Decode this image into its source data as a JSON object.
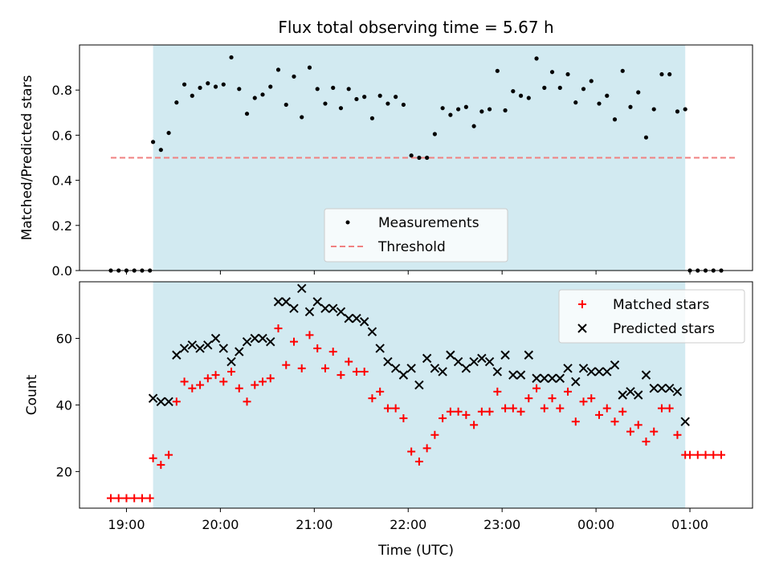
{
  "chart_data": [
    {
      "type": "scatter",
      "title": "Flux total observing time = 5.67 h",
      "ylabel": "Matched/Predicted stars",
      "xlabel": "",
      "ylim": [
        0,
        1.0
      ],
      "yticks": [
        0.0,
        0.2,
        0.4,
        0.6,
        0.8
      ],
      "ytick_labels": [
        "0.0",
        "0.2",
        "0.4",
        "0.6",
        "0.8"
      ],
      "xlim": [
        "18:30",
        "01:40"
      ],
      "xticks": [
        "19:00",
        "20:00",
        "21:00",
        "22:00",
        "23:00",
        "00:00",
        "01:00"
      ],
      "observing_window": [
        "19:17",
        "00:57"
      ],
      "threshold": {
        "value": 0.5,
        "x_range": [
          "18:50",
          "01:30"
        ],
        "color": "#f08080"
      },
      "legend": {
        "placement": "lower-center",
        "entries": [
          "Measurements",
          "Threshold"
        ]
      },
      "series": [
        {
          "name": "Measurements",
          "color": "#000000",
          "points": [
            [
              "18:50",
              0.0
            ],
            [
              "18:55",
              0.0
            ],
            [
              "19:00",
              0.0
            ],
            [
              "19:05",
              0.0
            ],
            [
              "19:10",
              0.0
            ],
            [
              "19:15",
              0.0
            ],
            [
              "19:17",
              0.57
            ],
            [
              "19:22",
              0.535
            ],
            [
              "19:27",
              0.61
            ],
            [
              "19:32",
              0.745
            ],
            [
              "19:37",
              0.825
            ],
            [
              "19:42",
              0.775
            ],
            [
              "19:47",
              0.81
            ],
            [
              "19:52",
              0.83
            ],
            [
              "19:57",
              0.815
            ],
            [
              "20:02",
              0.825
            ],
            [
              "20:07",
              0.945
            ],
            [
              "20:12",
              0.805
            ],
            [
              "20:17",
              0.695
            ],
            [
              "20:22",
              0.765
            ],
            [
              "20:27",
              0.78
            ],
            [
              "20:32",
              0.815
            ],
            [
              "20:37",
              0.89
            ],
            [
              "20:42",
              0.735
            ],
            [
              "20:47",
              0.86
            ],
            [
              "20:52",
              0.68
            ],
            [
              "20:57",
              0.9
            ],
            [
              "21:02",
              0.805
            ],
            [
              "21:07",
              0.74
            ],
            [
              "21:12",
              0.81
            ],
            [
              "21:17",
              0.72
            ],
            [
              "21:22",
              0.805
            ],
            [
              "21:27",
              0.76
            ],
            [
              "21:32",
              0.77
            ],
            [
              "21:37",
              0.675
            ],
            [
              "21:42",
              0.775
            ],
            [
              "21:47",
              0.74
            ],
            [
              "21:52",
              0.77
            ],
            [
              "21:57",
              0.735
            ],
            [
              "22:02",
              0.51
            ],
            [
              "22:07",
              0.5
            ],
            [
              "22:12",
              0.5
            ],
            [
              "22:17",
              0.605
            ],
            [
              "22:22",
              0.72
            ],
            [
              "22:27",
              0.69
            ],
            [
              "22:32",
              0.715
            ],
            [
              "22:37",
              0.725
            ],
            [
              "22:42",
              0.64
            ],
            [
              "22:47",
              0.705
            ],
            [
              "22:52",
              0.715
            ],
            [
              "22:57",
              0.885
            ],
            [
              "23:02",
              0.71
            ],
            [
              "23:07",
              0.795
            ],
            [
              "23:12",
              0.775
            ],
            [
              "23:17",
              0.765
            ],
            [
              "23:22",
              0.94
            ],
            [
              "23:27",
              0.81
            ],
            [
              "23:32",
              0.88
            ],
            [
              "23:37",
              0.81
            ],
            [
              "23:42",
              0.87
            ],
            [
              "23:47",
              0.745
            ],
            [
              "23:52",
              0.805
            ],
            [
              "23:57",
              0.84
            ],
            [
              "00:02",
              0.74
            ],
            [
              "00:07",
              0.775
            ],
            [
              "00:12",
              0.67
            ],
            [
              "00:17",
              0.885
            ],
            [
              "00:22",
              0.725
            ],
            [
              "00:27",
              0.79
            ],
            [
              "00:32",
              0.59
            ],
            [
              "00:37",
              0.715
            ],
            [
              "00:42",
              0.87
            ],
            [
              "00:47",
              0.87
            ],
            [
              "00:52",
              0.705
            ],
            [
              "00:57",
              0.715
            ],
            [
              "01:00",
              0.0
            ],
            [
              "01:05",
              0.0
            ],
            [
              "01:10",
              0.0
            ],
            [
              "01:15",
              0.0
            ],
            [
              "01:20",
              0.0
            ]
          ]
        }
      ]
    },
    {
      "type": "scatter",
      "title": "",
      "ylabel": "Count",
      "xlabel": "Time (UTC)",
      "ylim": [
        9,
        77
      ],
      "yticks": [
        20,
        40,
        60
      ],
      "ytick_labels": [
        "20",
        "40",
        "60"
      ],
      "xlim": [
        "18:30",
        "01:40"
      ],
      "xticks": [
        "19:00",
        "20:00",
        "21:00",
        "22:00",
        "23:00",
        "00:00",
        "01:00"
      ],
      "xtick_labels": [
        "19:00",
        "20:00",
        "21:00",
        "22:00",
        "23:00",
        "00:00",
        "01:00"
      ],
      "observing_window": [
        "19:17",
        "00:57"
      ],
      "legend": {
        "placement": "top-right",
        "entries": [
          "Matched stars",
          "Predicted stars"
        ]
      },
      "series": [
        {
          "name": "Matched stars",
          "color": "#ff0000",
          "marker": "plus",
          "points": [
            [
              "18:50",
              12
            ],
            [
              "18:55",
              12
            ],
            [
              "19:00",
              12
            ],
            [
              "19:05",
              12
            ],
            [
              "19:10",
              12
            ],
            [
              "19:15",
              12
            ],
            [
              "19:17",
              24
            ],
            [
              "19:22",
              22
            ],
            [
              "19:27",
              25
            ],
            [
              "19:32",
              41
            ],
            [
              "19:37",
              47
            ],
            [
              "19:42",
              45
            ],
            [
              "19:47",
              46
            ],
            [
              "19:52",
              48
            ],
            [
              "19:57",
              49
            ],
            [
              "20:02",
              47
            ],
            [
              "20:07",
              50
            ],
            [
              "20:12",
              45
            ],
            [
              "20:17",
              41
            ],
            [
              "20:22",
              46
            ],
            [
              "20:27",
              47
            ],
            [
              "20:32",
              48
            ],
            [
              "20:37",
              63
            ],
            [
              "20:42",
              52
            ],
            [
              "20:47",
              59
            ],
            [
              "20:52",
              51
            ],
            [
              "20:57",
              61
            ],
            [
              "21:02",
              57
            ],
            [
              "21:07",
              51
            ],
            [
              "21:12",
              56
            ],
            [
              "21:17",
              49
            ],
            [
              "21:22",
              53
            ],
            [
              "21:27",
              50
            ],
            [
              "21:32",
              50
            ],
            [
              "21:37",
              42
            ],
            [
              "21:42",
              44
            ],
            [
              "21:47",
              39
            ],
            [
              "21:52",
              39
            ],
            [
              "21:57",
              36
            ],
            [
              "22:02",
              26
            ],
            [
              "22:07",
              23
            ],
            [
              "22:12",
              27
            ],
            [
              "22:17",
              31
            ],
            [
              "22:22",
              36
            ],
            [
              "22:27",
              38
            ],
            [
              "22:32",
              38
            ],
            [
              "22:37",
              37
            ],
            [
              "22:42",
              34
            ],
            [
              "22:47",
              38
            ],
            [
              "22:52",
              38
            ],
            [
              "22:57",
              44
            ],
            [
              "23:02",
              39
            ],
            [
              "23:07",
              39
            ],
            [
              "23:12",
              38
            ],
            [
              "23:17",
              42
            ],
            [
              "23:22",
              45
            ],
            [
              "23:27",
              39
            ],
            [
              "23:32",
              42
            ],
            [
              "23:37",
              39
            ],
            [
              "23:42",
              44
            ],
            [
              "23:47",
              35
            ],
            [
              "23:52",
              41
            ],
            [
              "23:57",
              42
            ],
            [
              "00:02",
              37
            ],
            [
              "00:07",
              39
            ],
            [
              "00:12",
              35
            ],
            [
              "00:17",
              38
            ],
            [
              "00:22",
              32
            ],
            [
              "00:27",
              34
            ],
            [
              "00:32",
              29
            ],
            [
              "00:37",
              32
            ],
            [
              "00:42",
              39
            ],
            [
              "00:47",
              39
            ],
            [
              "00:52",
              31
            ],
            [
              "00:57",
              25
            ],
            [
              "01:00",
              25
            ],
            [
              "01:05",
              25
            ],
            [
              "01:10",
              25
            ],
            [
              "01:15",
              25
            ],
            [
              "01:20",
              25
            ]
          ]
        },
        {
          "name": "Predicted stars",
          "color": "#000000",
          "marker": "x",
          "points": [
            [
              "19:17",
              42
            ],
            [
              "19:22",
              41
            ],
            [
              "19:27",
              41
            ],
            [
              "19:32",
              55
            ],
            [
              "19:37",
              57
            ],
            [
              "19:42",
              58
            ],
            [
              "19:47",
              57
            ],
            [
              "19:52",
              58
            ],
            [
              "19:57",
              60
            ],
            [
              "20:02",
              57
            ],
            [
              "20:07",
              53
            ],
            [
              "20:12",
              56
            ],
            [
              "20:17",
              59
            ],
            [
              "20:22",
              60
            ],
            [
              "20:27",
              60
            ],
            [
              "20:32",
              59
            ],
            [
              "20:37",
              71
            ],
            [
              "20:42",
              71
            ],
            [
              "20:47",
              69
            ],
            [
              "20:52",
              75
            ],
            [
              "20:57",
              68
            ],
            [
              "21:02",
              71
            ],
            [
              "21:07",
              69
            ],
            [
              "21:12",
              69
            ],
            [
              "21:17",
              68
            ],
            [
              "21:22",
              66
            ],
            [
              "21:27",
              66
            ],
            [
              "21:32",
              65
            ],
            [
              "21:37",
              62
            ],
            [
              "21:42",
              57
            ],
            [
              "21:47",
              53
            ],
            [
              "21:52",
              51
            ],
            [
              "21:57",
              49
            ],
            [
              "22:02",
              51
            ],
            [
              "22:07",
              46
            ],
            [
              "22:12",
              54
            ],
            [
              "22:17",
              51
            ],
            [
              "22:22",
              50
            ],
            [
              "22:27",
              55
            ],
            [
              "22:32",
              53
            ],
            [
              "22:37",
              51
            ],
            [
              "22:42",
              53
            ],
            [
              "22:47",
              54
            ],
            [
              "22:52",
              53
            ],
            [
              "22:57",
              50
            ],
            [
              "23:02",
              55
            ],
            [
              "23:07",
              49
            ],
            [
              "23:12",
              49
            ],
            [
              "23:17",
              55
            ],
            [
              "23:22",
              48
            ],
            [
              "23:27",
              48
            ],
            [
              "23:32",
              48
            ],
            [
              "23:37",
              48
            ],
            [
              "23:42",
              51
            ],
            [
              "23:47",
              47
            ],
            [
              "23:52",
              51
            ],
            [
              "23:57",
              50
            ],
            [
              "00:02",
              50
            ],
            [
              "00:07",
              50
            ],
            [
              "00:12",
              52
            ],
            [
              "00:17",
              43
            ],
            [
              "00:22",
              44
            ],
            [
              "00:27",
              43
            ],
            [
              "00:32",
              49
            ],
            [
              "00:37",
              45
            ],
            [
              "00:42",
              45
            ],
            [
              "00:47",
              45
            ],
            [
              "00:52",
              44
            ],
            [
              "00:57",
              35
            ]
          ]
        }
      ]
    }
  ],
  "colors": {
    "observing_shade": "#add8e6",
    "threshold": "#f08080"
  }
}
